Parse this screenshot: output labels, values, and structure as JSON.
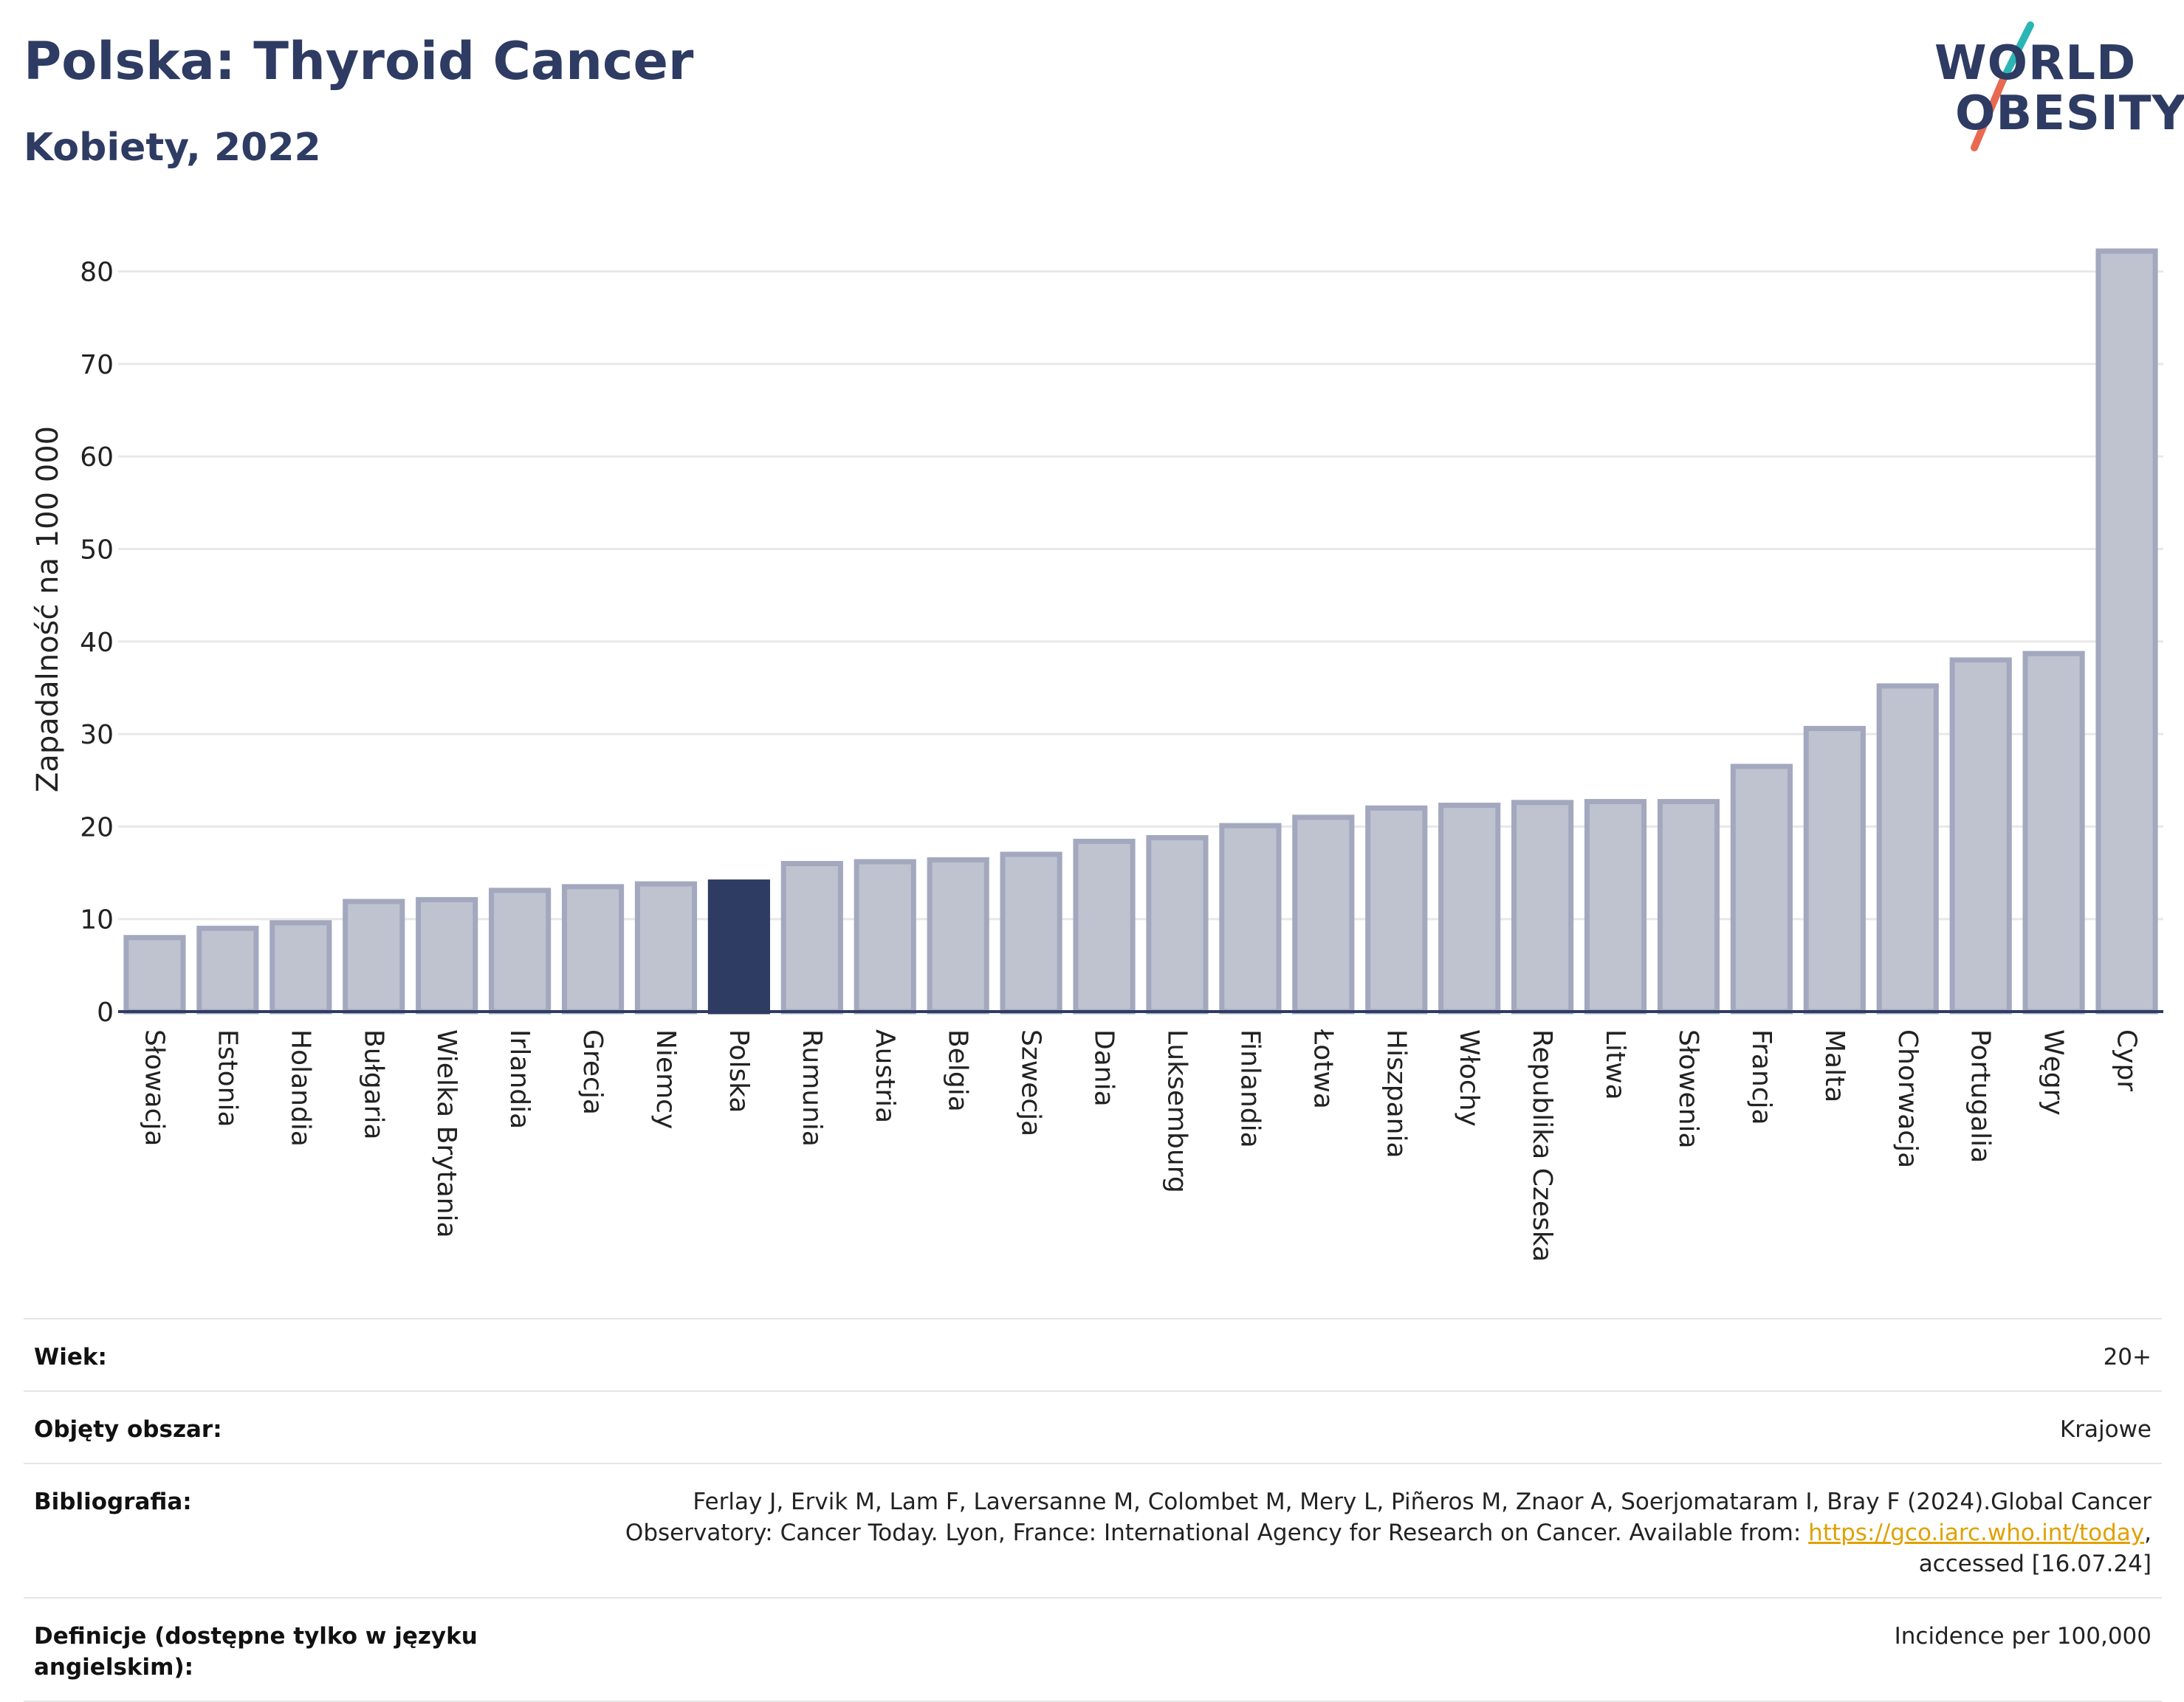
{
  "header": {
    "title": "Polska: Thyroid Cancer",
    "subtitle": "Kobiety, 2022"
  },
  "logo": {
    "line1": "WORLD",
    "line2": "OBESITY",
    "slash_color_top": "#2bb5b5",
    "slash_color_bottom": "#e86a50"
  },
  "colors": {
    "highlight": "#2e3b63",
    "bar_fill": "#bfc3d0",
    "bar_border": "#a3a8bf",
    "grid": "#e8e8e8",
    "axis": "#2e3b63"
  },
  "chart_data": {
    "type": "bar",
    "ylabel": "Zapadalność na 100 000",
    "ylim": [
      0,
      83
    ],
    "yticks": [
      0,
      10,
      20,
      30,
      40,
      50,
      60,
      70,
      80
    ],
    "grid": true,
    "highlight": "Polska",
    "categories": [
      "Słowacja",
      "Estonia",
      "Holandia",
      "Bułgaria",
      "Wielka Brytania",
      "Irlandia",
      "Grecja",
      "Niemcy",
      "Polska",
      "Rumunia",
      "Austria",
      "Belgia",
      "Szwecja",
      "Dania",
      "Luksemburg",
      "Finlandia",
      "Łotwa",
      "Hiszpania",
      "Włochy",
      "Republika Czeska",
      "Litwa",
      "Słowenia",
      "Francja",
      "Malta",
      "Chorwacja",
      "Portugalia",
      "Węgry",
      "Cypr"
    ],
    "values": [
      8.0,
      9.0,
      9.6,
      11.9,
      12.1,
      13.1,
      13.5,
      13.8,
      14.0,
      16.0,
      16.2,
      16.4,
      17.0,
      18.4,
      18.8,
      20.1,
      21.0,
      22.0,
      22.3,
      22.6,
      22.7,
      22.7,
      26.5,
      30.6,
      35.2,
      38.0,
      38.7,
      82.2
    ]
  },
  "meta": [
    {
      "key": "Wiek:",
      "value": "20+"
    },
    {
      "key": "Objęty obszar:",
      "value": "Krajowe"
    },
    {
      "key": "Bibliografia:",
      "value_lines": [
        "Ferlay J, Ervik M, Lam F, Laversanne M, Colombet M, Mery L, Piñeros M, Znaor A, Soerjomataram I, Bray F (2024).Global Cancer",
        "Observatory: Cancer Today. Lyon, France: International Agency for Research on Cancer. Available from: "
      ],
      "link": "https://gco.iarc.who.int/today",
      "after_link": ",",
      "last_line": "accessed [16.07.24]"
    },
    {
      "key": "Definicje (dostępne tylko w języku angielskim):",
      "value": "Incidence per 100,000"
    }
  ]
}
